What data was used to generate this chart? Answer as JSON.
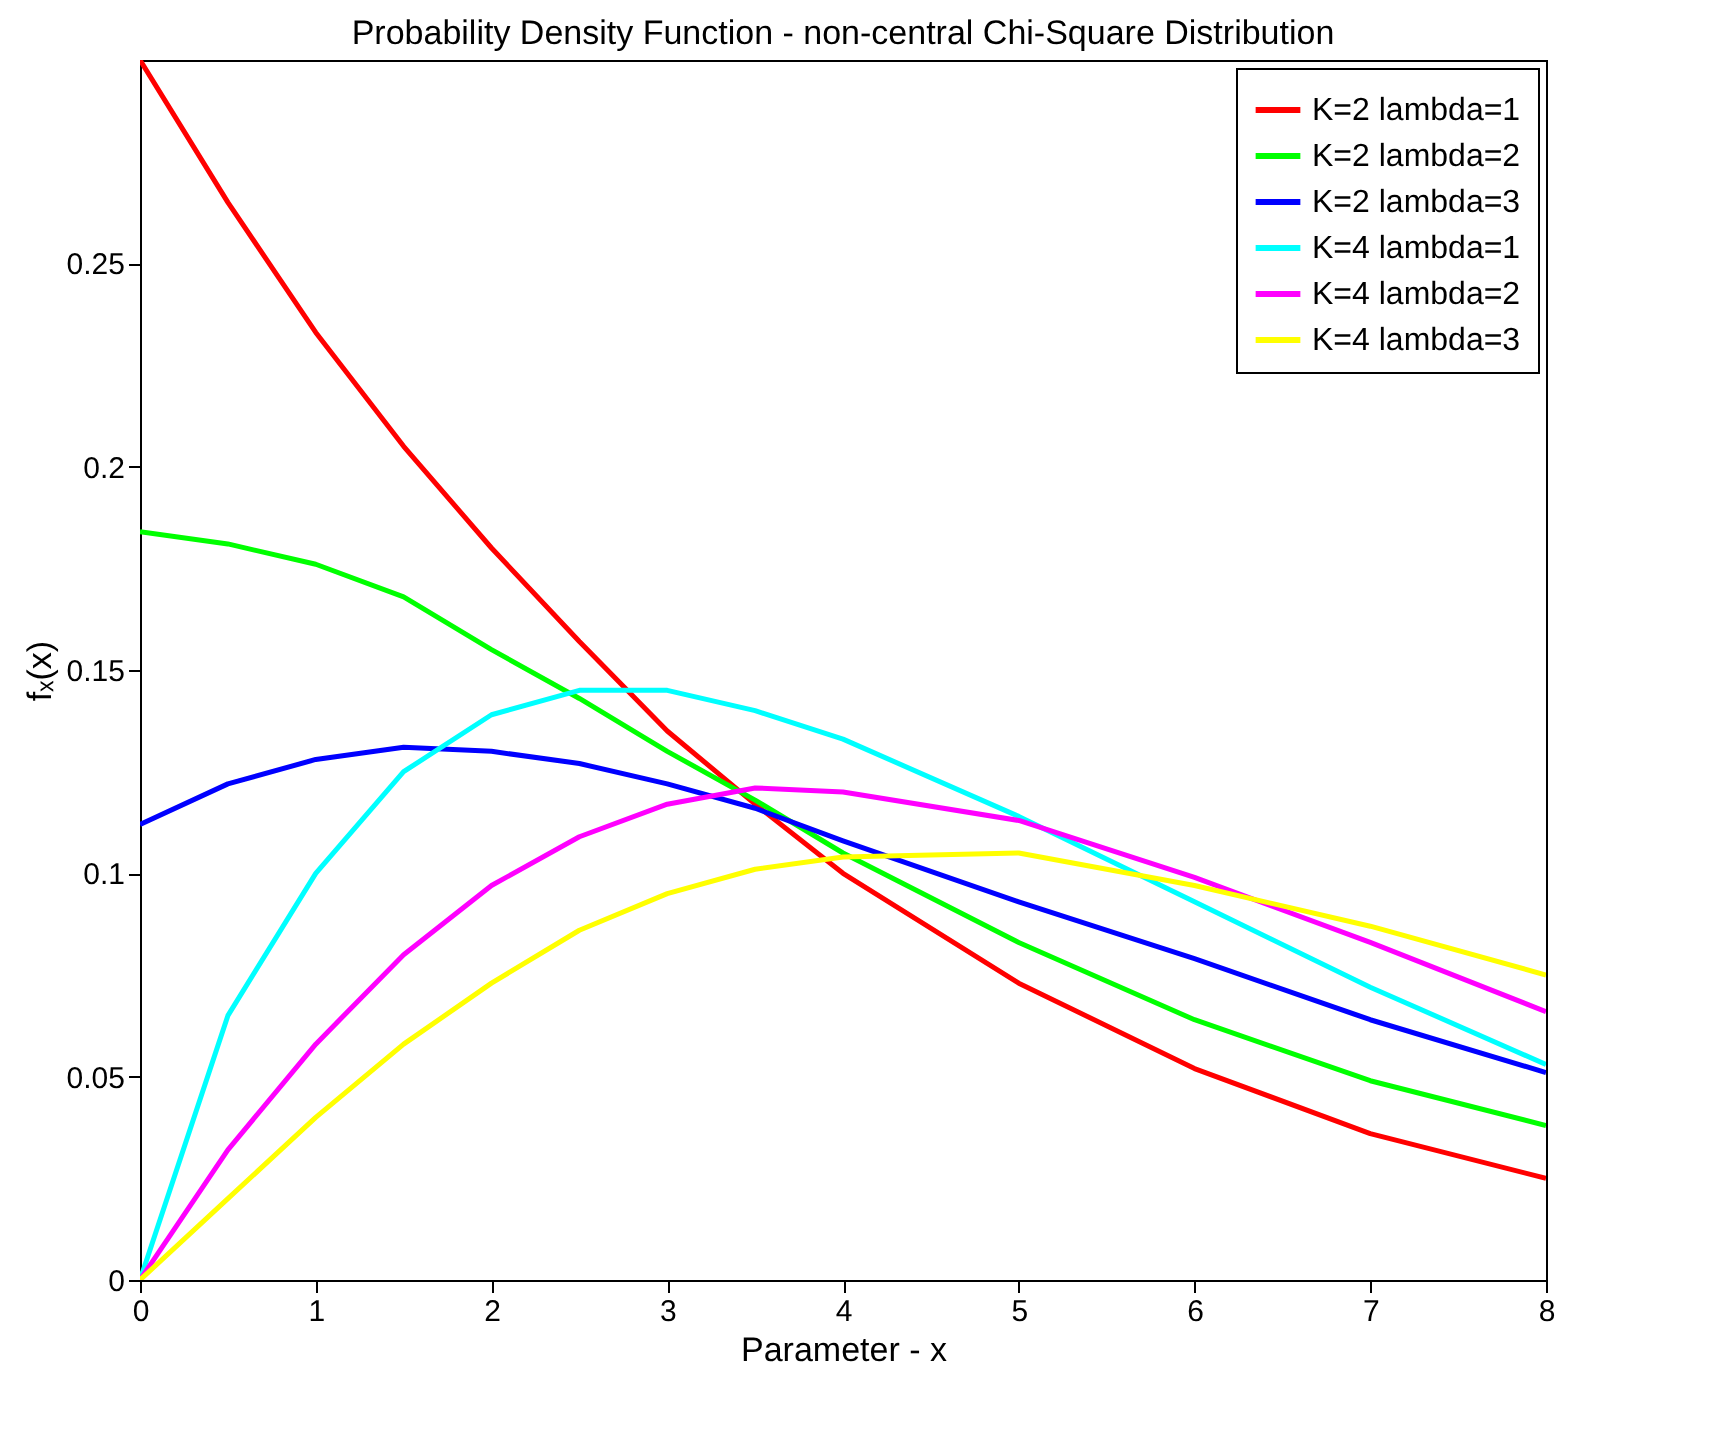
{
  "chart_data": {
    "type": "line",
    "title": "Probability Density Function - non-central Chi-Square Distribution",
    "xlabel": "Parameter - x",
    "ylabel": "fₓ(x)",
    "x": [
      0,
      0.5,
      1,
      1.5,
      2,
      2.5,
      3,
      3.5,
      4,
      5,
      6,
      7,
      8
    ],
    "series": [
      {
        "name": "K=2 lambda=1",
        "color": "#ff0000",
        "values": [
          0.3,
          0.265,
          0.233,
          0.205,
          0.18,
          0.157,
          0.135,
          0.117,
          0.1,
          0.073,
          0.052,
          0.036,
          0.025
        ]
      },
      {
        "name": "K=2 lambda=2",
        "color": "#00ff00",
        "values": [
          0.184,
          0.181,
          0.176,
          0.168,
          0.155,
          0.143,
          0.13,
          0.118,
          0.105,
          0.083,
          0.064,
          0.049,
          0.038
        ]
      },
      {
        "name": "K=2 lambda=3",
        "color": "#0000ff",
        "values": [
          0.112,
          0.122,
          0.128,
          0.131,
          0.13,
          0.127,
          0.122,
          0.116,
          0.108,
          0.093,
          0.079,
          0.064,
          0.051
        ]
      },
      {
        "name": "K=4 lambda=1",
        "color": "#00ffff",
        "values": [
          0,
          0.065,
          0.1,
          0.125,
          0.139,
          0.145,
          0.145,
          0.14,
          0.133,
          0.114,
          0.093,
          0.072,
          0.053
        ]
      },
      {
        "name": "K=4 lambda=2",
        "color": "#ff00ff",
        "values": [
          0,
          0.032,
          0.058,
          0.08,
          0.097,
          0.109,
          0.117,
          0.121,
          0.12,
          0.113,
          0.099,
          0.083,
          0.066
        ]
      },
      {
        "name": "K=4 lambda=3",
        "color": "#ffff00",
        "values": [
          0,
          0.02,
          0.04,
          0.058,
          0.073,
          0.086,
          0.095,
          0.101,
          0.104,
          0.105,
          0.097,
          0.087,
          0.075
        ]
      }
    ],
    "xlim": [
      0,
      8
    ],
    "xticks": [
      0,
      1,
      2,
      3,
      4,
      5,
      6,
      7,
      8
    ],
    "ylim": [
      0,
      0.3
    ],
    "yticks": [
      0,
      0.05,
      0.1,
      0.15,
      0.2,
      0.25
    ],
    "legend": "top right",
    "grid": false,
    "marker": "none",
    "line_style": "solid"
  }
}
